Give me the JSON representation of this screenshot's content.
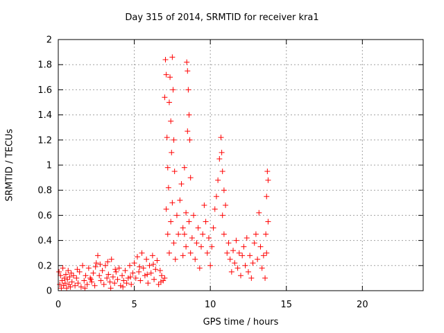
{
  "chart_data": {
    "type": "scatter",
    "title": "Day 315 of 2014, SRMTID for receiver kra1",
    "xlabel": "GPS time / hours",
    "ylabel": "SRMTID / TECUs",
    "xlim": [
      0,
      24
    ],
    "ylim": [
      0,
      2
    ],
    "xticks": [
      0,
      5,
      10,
      15,
      20
    ],
    "xtick_labels": [
      "0",
      "5",
      "10",
      "15",
      "20"
    ],
    "yticks": [
      0,
      0.2,
      0.4,
      0.6,
      0.8,
      1,
      1.2,
      1.4,
      1.6,
      1.8,
      2
    ],
    "ytick_labels": [
      "0",
      "0.2",
      "0.4",
      "0.6",
      "0.8",
      "1",
      "1.2",
      "1.4",
      "1.6",
      "1.8",
      "2"
    ],
    "grid": true,
    "marker": "+",
    "marker_color": "#ff0000",
    "series": [
      {
        "name": "SRMTID",
        "points": [
          [
            0.05,
            0.15
          ],
          [
            0.1,
            0.05
          ],
          [
            0.15,
            0.12
          ],
          [
            0.2,
            0.02
          ],
          [
            0.25,
            0.08
          ],
          [
            0.3,
            0.18
          ],
          [
            0.35,
            0.04
          ],
          [
            0.4,
            0.1
          ],
          [
            0.45,
            0.06
          ],
          [
            0.5,
            0.13
          ],
          [
            0.55,
            0.02
          ],
          [
            0.6,
            0.09
          ],
          [
            0.65,
            0.16
          ],
          [
            0.7,
            0.05
          ],
          [
            0.75,
            0.11
          ],
          [
            0.8,
            0.03
          ],
          [
            0.9,
            0.07
          ],
          [
            1.0,
            0.12
          ],
          [
            1.1,
            0.04
          ],
          [
            1.2,
            0.1
          ],
          [
            1.3,
            0.06
          ],
          [
            1.4,
            0.15
          ],
          [
            1.5,
            0.03
          ],
          [
            1.6,
            0.2
          ],
          [
            1.7,
            0.08
          ],
          [
            1.8,
            0.12
          ],
          [
            1.9,
            0.05
          ],
          [
            2.0,
            0.18
          ],
          [
            2.1,
            0.1
          ],
          [
            2.2,
            0.07
          ],
          [
            2.3,
            0.14
          ],
          [
            2.4,
            0.04
          ],
          [
            2.5,
            0.22
          ],
          [
            2.6,
            0.28
          ],
          [
            2.7,
            0.12
          ],
          [
            2.8,
            0.08
          ],
          [
            2.9,
            0.16
          ],
          [
            3.0,
            0.05
          ],
          [
            3.1,
            0.2
          ],
          [
            3.2,
            0.1
          ],
          [
            3.3,
            0.13
          ],
          [
            3.4,
            0.07
          ],
          [
            3.5,
            0.25
          ],
          [
            3.6,
            0.11
          ],
          [
            3.7,
            0.06
          ],
          [
            3.8,
            0.15
          ],
          [
            3.9,
            0.09
          ],
          [
            4.0,
            0.18
          ],
          [
            4.1,
            0.04
          ],
          [
            4.2,
            0.12
          ],
          [
            4.3,
            0.08
          ],
          [
            4.4,
            0.16
          ],
          [
            4.5,
            0.06
          ],
          [
            4.6,
            0.1
          ],
          [
            4.7,
            0.2
          ],
          [
            4.8,
            0.05
          ],
          [
            4.9,
            0.14
          ],
          [
            5.0,
            0.22
          ],
          [
            5.1,
            0.1
          ],
          [
            5.2,
            0.27
          ],
          [
            5.3,
            0.15
          ],
          [
            5.4,
            0.08
          ],
          [
            5.5,
            0.3
          ],
          [
            5.6,
            0.18
          ],
          [
            5.7,
            0.12
          ],
          [
            5.8,
            0.25
          ],
          [
            5.9,
            0.06
          ],
          [
            6.0,
            0.2
          ],
          [
            6.1,
            0.14
          ],
          [
            6.2,
            0.28
          ],
          [
            6.3,
            0.09
          ],
          [
            6.4,
            0.17
          ],
          [
            6.5,
            0.24
          ],
          [
            6.6,
            0.05
          ],
          [
            6.7,
            0.16
          ],
          [
            6.8,
            0.12
          ],
          [
            6.9,
            0.08
          ],
          [
            7.0,
            0.1
          ],
          [
            2.15,
            0.09
          ],
          [
            2.45,
            0.19
          ],
          [
            3.25,
            0.23
          ],
          [
            3.75,
            0.17
          ],
          [
            4.25,
            0.03
          ],
          [
            4.75,
            0.11
          ],
          [
            5.35,
            0.19
          ],
          [
            5.85,
            0.13
          ],
          [
            6.25,
            0.21
          ],
          [
            6.75,
            0.07
          ],
          [
            1.25,
            0.17
          ],
          [
            0.85,
            0.14
          ],
          [
            1.75,
            0.02
          ],
          [
            2.75,
            0.21
          ],
          [
            3.45,
            0.02
          ],
          [
            7.0,
            1.54
          ],
          [
            7.05,
            1.84
          ],
          [
            7.1,
            1.72
          ],
          [
            7.15,
            1.22
          ],
          [
            7.2,
            0.98
          ],
          [
            7.25,
            0.82
          ],
          [
            7.3,
            1.5
          ],
          [
            7.35,
            1.7
          ],
          [
            7.4,
            1.35
          ],
          [
            7.45,
            1.1
          ],
          [
            7.5,
            1.86
          ],
          [
            7.55,
            1.6
          ],
          [
            7.6,
            1.2
          ],
          [
            7.65,
            0.95
          ],
          [
            7.1,
            0.65
          ],
          [
            7.2,
            0.45
          ],
          [
            7.3,
            0.3
          ],
          [
            7.4,
            0.55
          ],
          [
            7.5,
            0.7
          ],
          [
            7.6,
            0.38
          ],
          [
            7.7,
            0.25
          ],
          [
            7.8,
            0.6
          ],
          [
            7.9,
            0.45
          ],
          [
            8.0,
            0.72
          ],
          [
            8.1,
            0.85
          ],
          [
            8.2,
            0.5
          ],
          [
            8.3,
            0.98
          ],
          [
            8.4,
            0.62
          ],
          [
            8.45,
            1.82
          ],
          [
            8.5,
            1.75
          ],
          [
            8.55,
            1.6
          ],
          [
            8.6,
            1.4
          ],
          [
            8.65,
            1.2
          ],
          [
            8.7,
            0.9
          ],
          [
            8.5,
            1.27
          ],
          [
            8.4,
            0.35
          ],
          [
            8.3,
            0.45
          ],
          [
            8.2,
            0.28
          ],
          [
            8.6,
            0.55
          ],
          [
            8.7,
            0.3
          ],
          [
            8.8,
            0.42
          ],
          [
            8.9,
            0.6
          ],
          [
            9.0,
            0.25
          ],
          [
            9.1,
            0.38
          ],
          [
            9.2,
            0.5
          ],
          [
            9.3,
            0.18
          ],
          [
            9.4,
            0.35
          ],
          [
            9.5,
            0.45
          ],
          [
            9.6,
            0.68
          ],
          [
            9.7,
            0.55
          ],
          [
            9.8,
            0.3
          ],
          [
            9.9,
            0.42
          ],
          [
            10.0,
            0.2
          ],
          [
            10.1,
            0.35
          ],
          [
            10.2,
            0.5
          ],
          [
            10.3,
            0.65
          ],
          [
            10.4,
            0.75
          ],
          [
            10.5,
            0.88
          ],
          [
            10.6,
            1.05
          ],
          [
            10.7,
            1.22
          ],
          [
            10.75,
            1.1
          ],
          [
            10.8,
            0.95
          ],
          [
            10.9,
            0.8
          ],
          [
            10.8,
            0.6
          ],
          [
            10.9,
            0.45
          ],
          [
            11.0,
            0.68
          ],
          [
            11.1,
            0.3
          ],
          [
            11.2,
            0.38
          ],
          [
            11.3,
            0.25
          ],
          [
            11.4,
            0.15
          ],
          [
            11.5,
            0.32
          ],
          [
            11.6,
            0.22
          ],
          [
            11.7,
            0.4
          ],
          [
            11.8,
            0.18
          ],
          [
            11.9,
            0.3
          ],
          [
            12.0,
            0.12
          ],
          [
            12.1,
            0.28
          ],
          [
            12.2,
            0.35
          ],
          [
            12.3,
            0.2
          ],
          [
            12.4,
            0.42
          ],
          [
            12.5,
            0.15
          ],
          [
            12.6,
            0.28
          ],
          [
            12.7,
            0.1
          ],
          [
            12.8,
            0.22
          ],
          [
            12.9,
            0.38
          ],
          [
            13.0,
            0.45
          ],
          [
            13.1,
            0.25
          ],
          [
            13.2,
            0.62
          ],
          [
            13.3,
            0.35
          ],
          [
            13.4,
            0.18
          ],
          [
            13.5,
            0.28
          ],
          [
            13.6,
            0.1
          ],
          [
            13.65,
            0.45
          ],
          [
            13.7,
            0.75
          ],
          [
            13.75,
            0.95
          ],
          [
            13.8,
            0.88
          ],
          [
            13.8,
            0.55
          ],
          [
            13.7,
            0.3
          ]
        ]
      }
    ]
  }
}
